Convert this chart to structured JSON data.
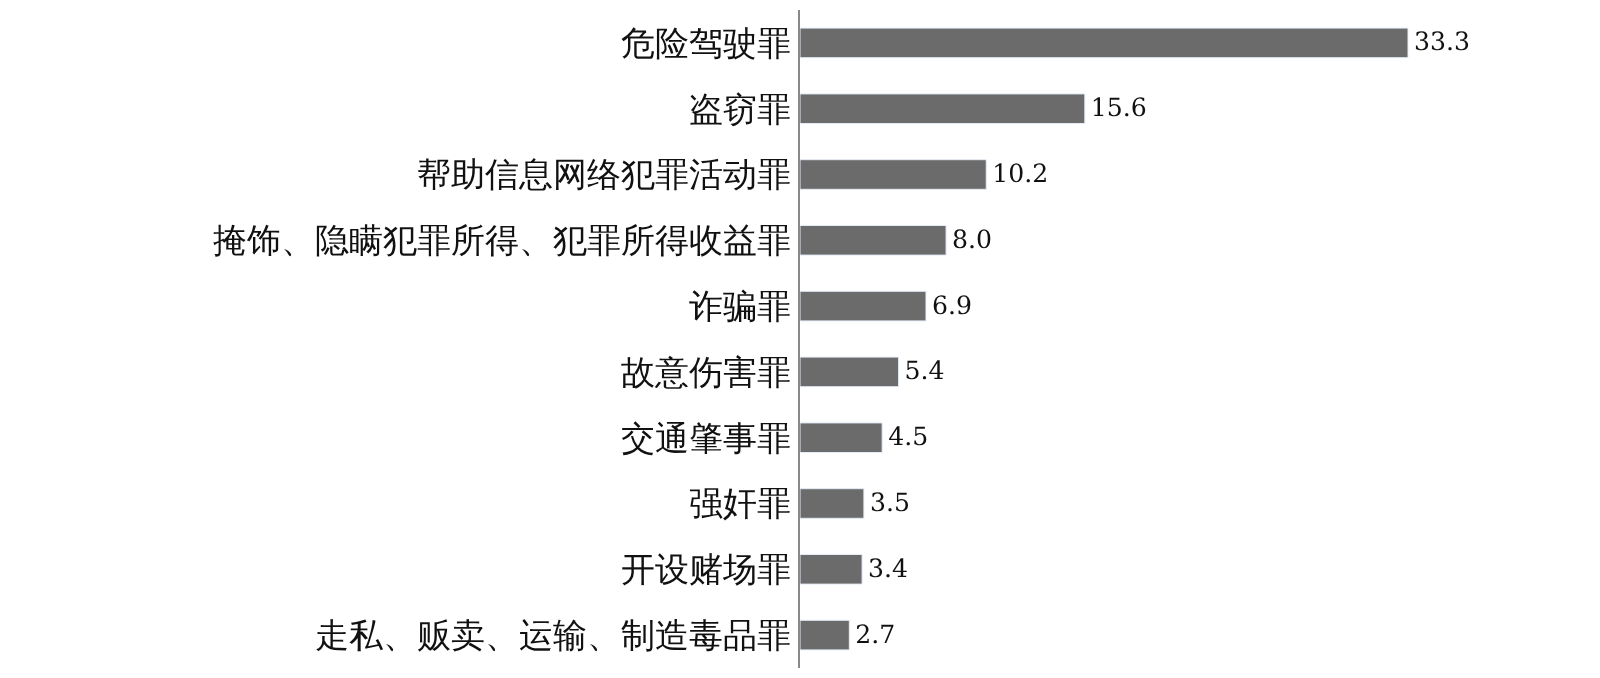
{
  "chart_data": {
    "type": "bar",
    "orientation": "horizontal",
    "categories": [
      "危险驾驶罪",
      "盗窃罪",
      "帮助信息网络犯罪活动罪",
      "掩饰、隐瞒犯罪所得、犯罪所得收益罪",
      "诈骗罪",
      "故意伤害罪",
      "交通肇事罪",
      "强奸罪",
      "开设赌场罪",
      "走私、贩卖、运输、制造毒品罪"
    ],
    "values": [
      33.3,
      15.6,
      10.2,
      8.0,
      6.9,
      5.4,
      4.5,
      3.5,
      3.4,
      2.7
    ],
    "value_labels": [
      "33.3",
      "15.6",
      "10.2",
      "8.0",
      "6.9",
      "5.4",
      "4.5",
      "3.5",
      "3.4",
      "2.7"
    ],
    "color": "#6b6b6b",
    "data_labels": true
  }
}
